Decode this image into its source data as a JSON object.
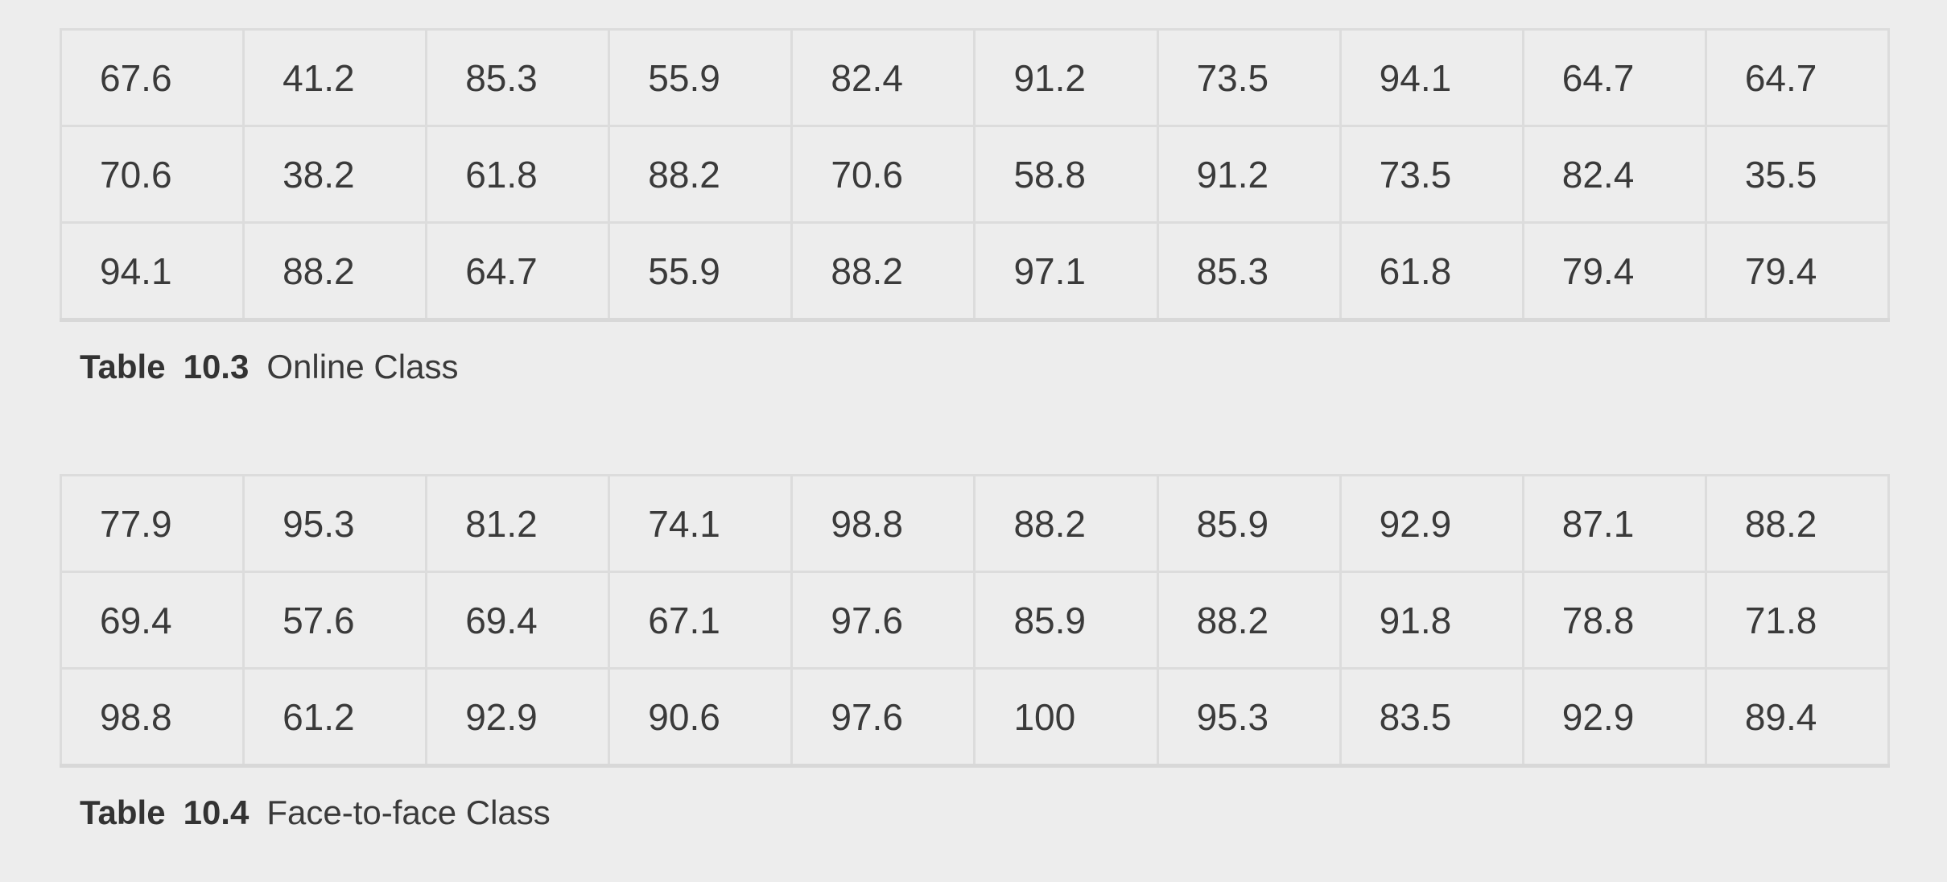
{
  "tables": [
    {
      "rows": [
        [
          "67.6",
          "41.2",
          "85.3",
          "55.9",
          "82.4",
          "91.2",
          "73.5",
          "94.1",
          "64.7",
          "64.7"
        ],
        [
          "70.6",
          "38.2",
          "61.8",
          "88.2",
          "70.6",
          "58.8",
          "91.2",
          "73.5",
          "82.4",
          "35.5"
        ],
        [
          "94.1",
          "88.2",
          "64.7",
          "55.9",
          "88.2",
          "97.1",
          "85.3",
          "61.8",
          "79.4",
          "79.4"
        ]
      ],
      "caption": {
        "label": "Table",
        "number": "10.3",
        "text": "Online Class"
      }
    },
    {
      "rows": [
        [
          "77.9",
          "95.3",
          "81.2",
          "74.1",
          "98.8",
          "88.2",
          "85.9",
          "92.9",
          "87.1",
          "88.2"
        ],
        [
          "69.4",
          "57.6",
          "69.4",
          "67.1",
          "97.6",
          "85.9",
          "88.2",
          "91.8",
          "78.8",
          "71.8"
        ],
        [
          "98.8",
          "61.2",
          "92.9",
          "90.6",
          "97.6",
          "100",
          "95.3",
          "83.5",
          "92.9",
          "89.4"
        ]
      ],
      "caption": {
        "label": "Table",
        "number": "10.4",
        "text": "Face-to-face Class"
      }
    }
  ]
}
